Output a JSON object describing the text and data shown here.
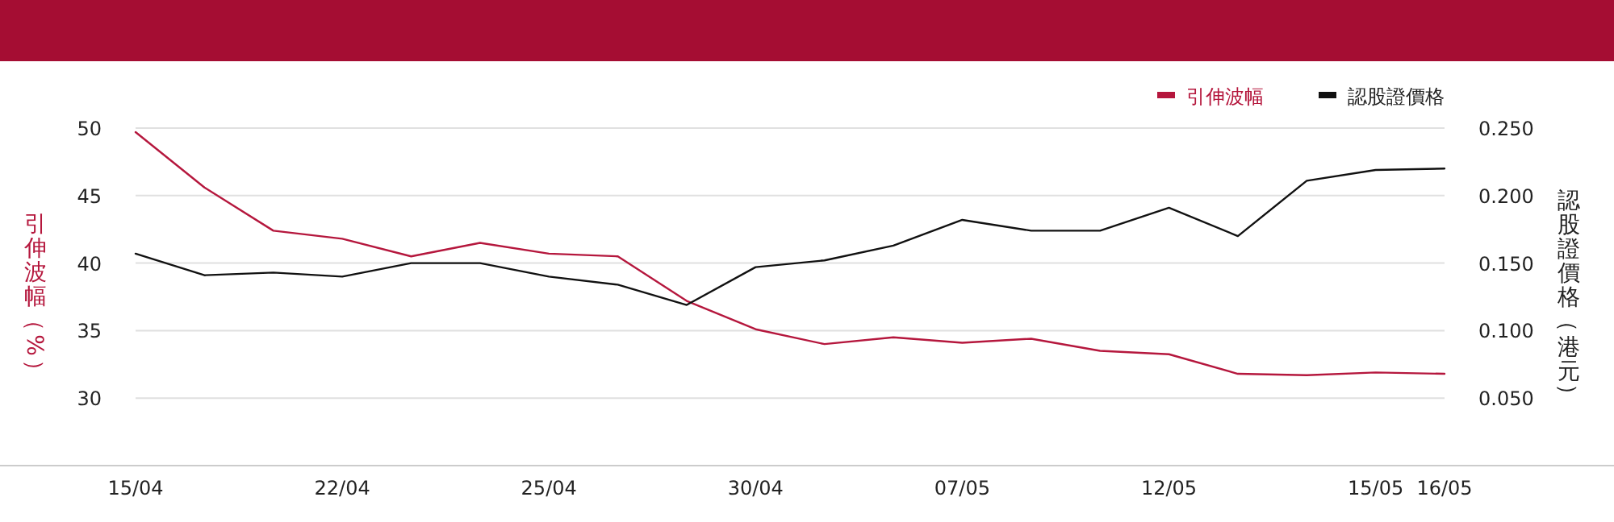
{
  "chart_data": {
    "type": "line",
    "categories": [
      "15/04",
      null,
      null,
      "22/04",
      null,
      null,
      "25/04",
      null,
      null,
      "30/04",
      null,
      null,
      "07/05",
      null,
      null,
      "12/05",
      null,
      null,
      "15/05",
      "16/05"
    ],
    "series": [
      {
        "name": "引伸波幅",
        "color": "#b5173d",
        "values": [
          49.7,
          45.6,
          42.4,
          41.8,
          40.5,
          41.5,
          40.7,
          40.5,
          37.2,
          35.1,
          34.0,
          34.5,
          34.1,
          34.4,
          33.5,
          33.25,
          31.8,
          31.7,
          31.9,
          31.8
        ]
      },
      {
        "name": "認股證價格",
        "color": "#111111",
        "axis": "y2",
        "values": [
          0.157,
          0.141,
          0.143,
          0.14,
          0.15,
          0.15,
          0.14,
          0.134,
          0.119,
          0.147,
          0.152,
          0.163,
          0.182,
          0.174,
          0.174,
          0.191,
          0.17,
          0.211,
          0.219,
          0.22
        ]
      }
    ],
    "ylabel": "引伸波幅（%）",
    "y2label": "認股證價格（港元）",
    "ylim": [
      25,
      50
    ],
    "yticks": [
      30,
      35,
      40,
      45,
      50
    ],
    "y2lim": [
      0,
      0.25
    ],
    "y2ticks": [
      {
        "value": 0.05,
        "label": "0.050"
      },
      {
        "value": 0.1,
        "label": "0.100"
      },
      {
        "value": 0.15,
        "label": "0.150"
      },
      {
        "value": 0.2,
        "label": "0.200"
      },
      {
        "value": 0.25,
        "label": "0.250"
      }
    ],
    "grid": "y",
    "legend": "top right",
    "marker": "none",
    "line_style": "solid"
  }
}
